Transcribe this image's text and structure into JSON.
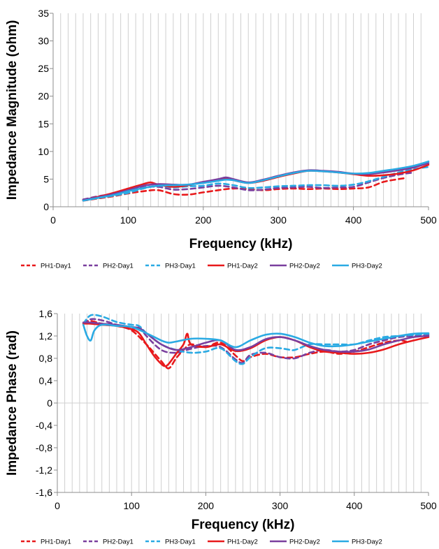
{
  "chart_data": [
    {
      "type": "line",
      "xlabel": "Frequency (kHz)",
      "ylabel": "Impedance Magnitude (ohm)",
      "xlim": [
        0,
        500
      ],
      "ylim": [
        0,
        35
      ],
      "xticks": [
        0,
        100,
        200,
        300,
        400,
        500
      ],
      "yticks": [
        0,
        5,
        10,
        15,
        20,
        25,
        30,
        35
      ],
      "ytick_labels": [
        "0",
        "5",
        "10",
        "15",
        "20",
        "25",
        "30",
        "35"
      ],
      "grid": "vertical",
      "legend_position": "bottom",
      "series": [
        {
          "name": "PH1-Day1",
          "color": "#e8191b",
          "dash": "dashed",
          "x": [
            40,
            60,
            80,
            100,
            120,
            140,
            160,
            180,
            200,
            220,
            240,
            260,
            280,
            300,
            320,
            340,
            360,
            380,
            400,
            420,
            440,
            460,
            470
          ],
          "y": [
            1.1,
            1.5,
            1.9,
            2.4,
            2.8,
            3.0,
            2.3,
            2.2,
            2.6,
            3.0,
            3.3,
            3.2,
            3.0,
            3.2,
            3.3,
            3.2,
            3.3,
            3.2,
            3.3,
            3.5,
            4.5,
            5.0,
            5.2
          ]
        },
        {
          "name": "PH2-Day1",
          "color": "#7a3f9e",
          "dash": "dashed",
          "x": [
            40,
            60,
            80,
            100,
            120,
            140,
            160,
            180,
            200,
            220,
            240,
            260,
            280,
            300,
            320,
            340,
            360,
            380,
            400,
            420,
            440,
            460,
            480
          ],
          "y": [
            1.3,
            1.9,
            2.3,
            2.8,
            3.5,
            3.6,
            3.1,
            3.2,
            3.5,
            3.8,
            3.5,
            3.0,
            3.1,
            3.4,
            3.5,
            3.6,
            3.4,
            3.5,
            3.6,
            4.4,
            5.2,
            5.8,
            6.2
          ]
        },
        {
          "name": "PH3-Day1",
          "color": "#2aaae3",
          "dash": "dashed",
          "x": [
            40,
            60,
            80,
            100,
            120,
            140,
            160,
            180,
            200,
            220,
            240,
            260,
            280,
            300,
            320,
            340,
            360,
            380,
            400,
            420,
            440,
            460,
            480,
            500
          ],
          "y": [
            1.2,
            1.6,
            2.0,
            2.5,
            3.3,
            3.8,
            3.5,
            3.7,
            3.8,
            4.2,
            3.9,
            3.4,
            3.5,
            3.7,
            3.8,
            3.9,
            3.9,
            3.8,
            4.0,
            4.6,
            5.4,
            6.2,
            6.8,
            7.2
          ]
        },
        {
          "name": "PH1-Day2",
          "color": "#e8191b",
          "dash": "solid",
          "x": [
            40,
            60,
            80,
            100,
            120,
            130,
            140,
            160,
            180,
            200,
            220,
            230,
            240,
            260,
            280,
            300,
            320,
            340,
            360,
            380,
            400,
            420,
            440,
            460,
            480,
            500
          ],
          "y": [
            1.2,
            1.8,
            2.5,
            3.3,
            4.1,
            4.4,
            4.0,
            3.6,
            3.9,
            4.5,
            4.8,
            5.1,
            4.8,
            4.3,
            4.7,
            5.4,
            6.0,
            6.5,
            6.4,
            6.2,
            5.9,
            5.6,
            5.7,
            6.0,
            6.6,
            7.6
          ]
        },
        {
          "name": "PH2-Day2",
          "color": "#7a3f9e",
          "dash": "solid",
          "x": [
            40,
            60,
            80,
            100,
            120,
            140,
            160,
            180,
            200,
            220,
            230,
            240,
            260,
            280,
            300,
            320,
            340,
            360,
            380,
            400,
            420,
            440,
            460,
            480,
            500
          ],
          "y": [
            1.3,
            1.7,
            2.3,
            3.0,
            3.8,
            4.1,
            4.0,
            4.0,
            4.5,
            5.0,
            5.3,
            5.0,
            4.4,
            4.9,
            5.6,
            6.2,
            6.6,
            6.5,
            6.3,
            6.0,
            5.9,
            6.2,
            6.6,
            7.1,
            7.9
          ]
        },
        {
          "name": "PH3-Day2",
          "color": "#2aaae3",
          "dash": "solid",
          "x": [
            40,
            60,
            80,
            100,
            120,
            140,
            160,
            180,
            200,
            220,
            230,
            240,
            260,
            280,
            300,
            320,
            340,
            360,
            380,
            400,
            420,
            440,
            460,
            480,
            500
          ],
          "y": [
            1.1,
            1.6,
            2.1,
            2.8,
            3.4,
            3.8,
            3.9,
            4.0,
            4.3,
            4.7,
            4.9,
            4.8,
            4.3,
            4.8,
            5.5,
            6.1,
            6.5,
            6.4,
            6.2,
            6.0,
            6.1,
            6.5,
            6.9,
            7.4,
            8.2
          ]
        }
      ]
    },
    {
      "type": "line",
      "xlabel": "Frequency (kHz)",
      "ylabel": "Impedance Phase (rad)",
      "xlim": [
        0,
        500
      ],
      "ylim": [
        -1.6,
        1.6
      ],
      "xticks": [
        0,
        100,
        200,
        300,
        400,
        500
      ],
      "yticks": [
        -1.6,
        -1.2,
        -0.8,
        -0.4,
        0,
        0.4,
        0.8,
        1.2,
        1.6
      ],
      "ytick_labels": [
        "-1,6",
        "-1,2",
        "-0,8",
        "-0,4",
        "0",
        "0,4",
        "0,8",
        "1,2",
        "1,6"
      ],
      "grid": "vertical",
      "legend_position": "bottom",
      "series": [
        {
          "name": "PH1-Day1",
          "color": "#e8191b",
          "dash": "dashed",
          "x": [
            35,
            45,
            60,
            80,
            100,
            120,
            130,
            140,
            150,
            160,
            170,
            180,
            200,
            220,
            240,
            250,
            260,
            280,
            300,
            320,
            340,
            360,
            380,
            400,
            420,
            440,
            460,
            470
          ],
          "y": [
            1.44,
            1.47,
            1.42,
            1.38,
            1.3,
            1.05,
            0.9,
            0.75,
            0.62,
            0.8,
            0.95,
            1.05,
            1.0,
            1.08,
            0.85,
            0.75,
            0.82,
            0.88,
            0.82,
            0.82,
            0.88,
            0.92,
            0.88,
            0.92,
            1.0,
            1.08,
            1.12,
            1.1
          ]
        },
        {
          "name": "PH2-Day1",
          "color": "#7a3f9e",
          "dash": "dashed",
          "x": [
            35,
            45,
            60,
            80,
            100,
            110,
            120,
            140,
            160,
            180,
            200,
            220,
            240,
            250,
            260,
            280,
            300,
            320,
            340,
            360,
            380,
            400,
            420,
            440,
            460,
            480,
            500
          ],
          "y": [
            1.42,
            1.5,
            1.48,
            1.4,
            1.32,
            1.36,
            1.2,
            0.95,
            0.9,
            0.97,
            1.02,
            1.0,
            0.78,
            0.72,
            0.86,
            0.9,
            0.82,
            0.8,
            0.9,
            0.95,
            0.92,
            0.95,
            1.05,
            1.12,
            1.18,
            1.2,
            1.22
          ]
        },
        {
          "name": "PH3-Day1",
          "color": "#2aaae3",
          "dash": "dashed",
          "x": [
            35,
            45,
            60,
            80,
            100,
            110,
            120,
            140,
            160,
            180,
            200,
            220,
            240,
            250,
            260,
            280,
            300,
            310,
            320,
            340,
            360,
            380,
            400,
            420,
            440,
            460,
            480,
            500
          ],
          "y": [
            1.42,
            1.57,
            1.55,
            1.45,
            1.4,
            1.38,
            1.25,
            1.05,
            0.95,
            0.9,
            0.92,
            0.98,
            0.75,
            0.7,
            0.82,
            0.98,
            0.98,
            0.96,
            0.95,
            1.05,
            1.05,
            1.05,
            1.05,
            1.12,
            1.18,
            1.2,
            1.22,
            1.24
          ]
        },
        {
          "name": "PH1-Day2",
          "color": "#e8191b",
          "dash": "solid",
          "x": [
            35,
            45,
            60,
            80,
            100,
            110,
            120,
            130,
            140,
            145,
            150,
            160,
            170,
            175,
            180,
            200,
            220,
            240,
            260,
            280,
            300,
            320,
            340,
            360,
            380,
            400,
            420,
            440,
            460,
            480,
            500
          ],
          "y": [
            1.42,
            1.42,
            1.4,
            1.38,
            1.32,
            1.25,
            1.05,
            0.85,
            0.7,
            0.66,
            0.7,
            0.88,
            1.05,
            1.24,
            1.05,
            1.0,
            1.05,
            0.93,
            0.98,
            1.12,
            1.18,
            1.12,
            1.0,
            0.92,
            0.9,
            0.88,
            0.9,
            0.96,
            1.05,
            1.12,
            1.18
          ]
        },
        {
          "name": "PH2-Day2",
          "color": "#7a3f9e",
          "dash": "solid",
          "x": [
            35,
            45,
            60,
            80,
            100,
            110,
            120,
            140,
            160,
            180,
            200,
            220,
            240,
            260,
            280,
            300,
            320,
            340,
            360,
            380,
            400,
            420,
            440,
            460,
            480,
            500
          ],
          "y": [
            1.44,
            1.44,
            1.42,
            1.4,
            1.36,
            1.34,
            1.25,
            1.05,
            0.95,
            1.0,
            1.08,
            1.12,
            0.95,
            1.0,
            1.14,
            1.18,
            1.12,
            1.02,
            0.95,
            0.92,
            0.92,
            0.96,
            1.05,
            1.12,
            1.18,
            1.2
          ]
        },
        {
          "name": "PH3-Day2",
          "color": "#2aaae3",
          "dash": "solid",
          "x": [
            35,
            40,
            45,
            50,
            60,
            80,
            100,
            120,
            140,
            150,
            160,
            180,
            200,
            220,
            240,
            260,
            280,
            300,
            320,
            340,
            360,
            380,
            400,
            420,
            440,
            460,
            480,
            500
          ],
          "y": [
            1.4,
            1.2,
            1.12,
            1.3,
            1.4,
            1.38,
            1.36,
            1.25,
            1.12,
            1.08,
            1.1,
            1.15,
            1.15,
            1.12,
            1.0,
            1.12,
            1.22,
            1.24,
            1.18,
            1.08,
            1.02,
            1.02,
            1.05,
            1.1,
            1.15,
            1.2,
            1.24,
            1.25
          ]
        }
      ]
    }
  ]
}
